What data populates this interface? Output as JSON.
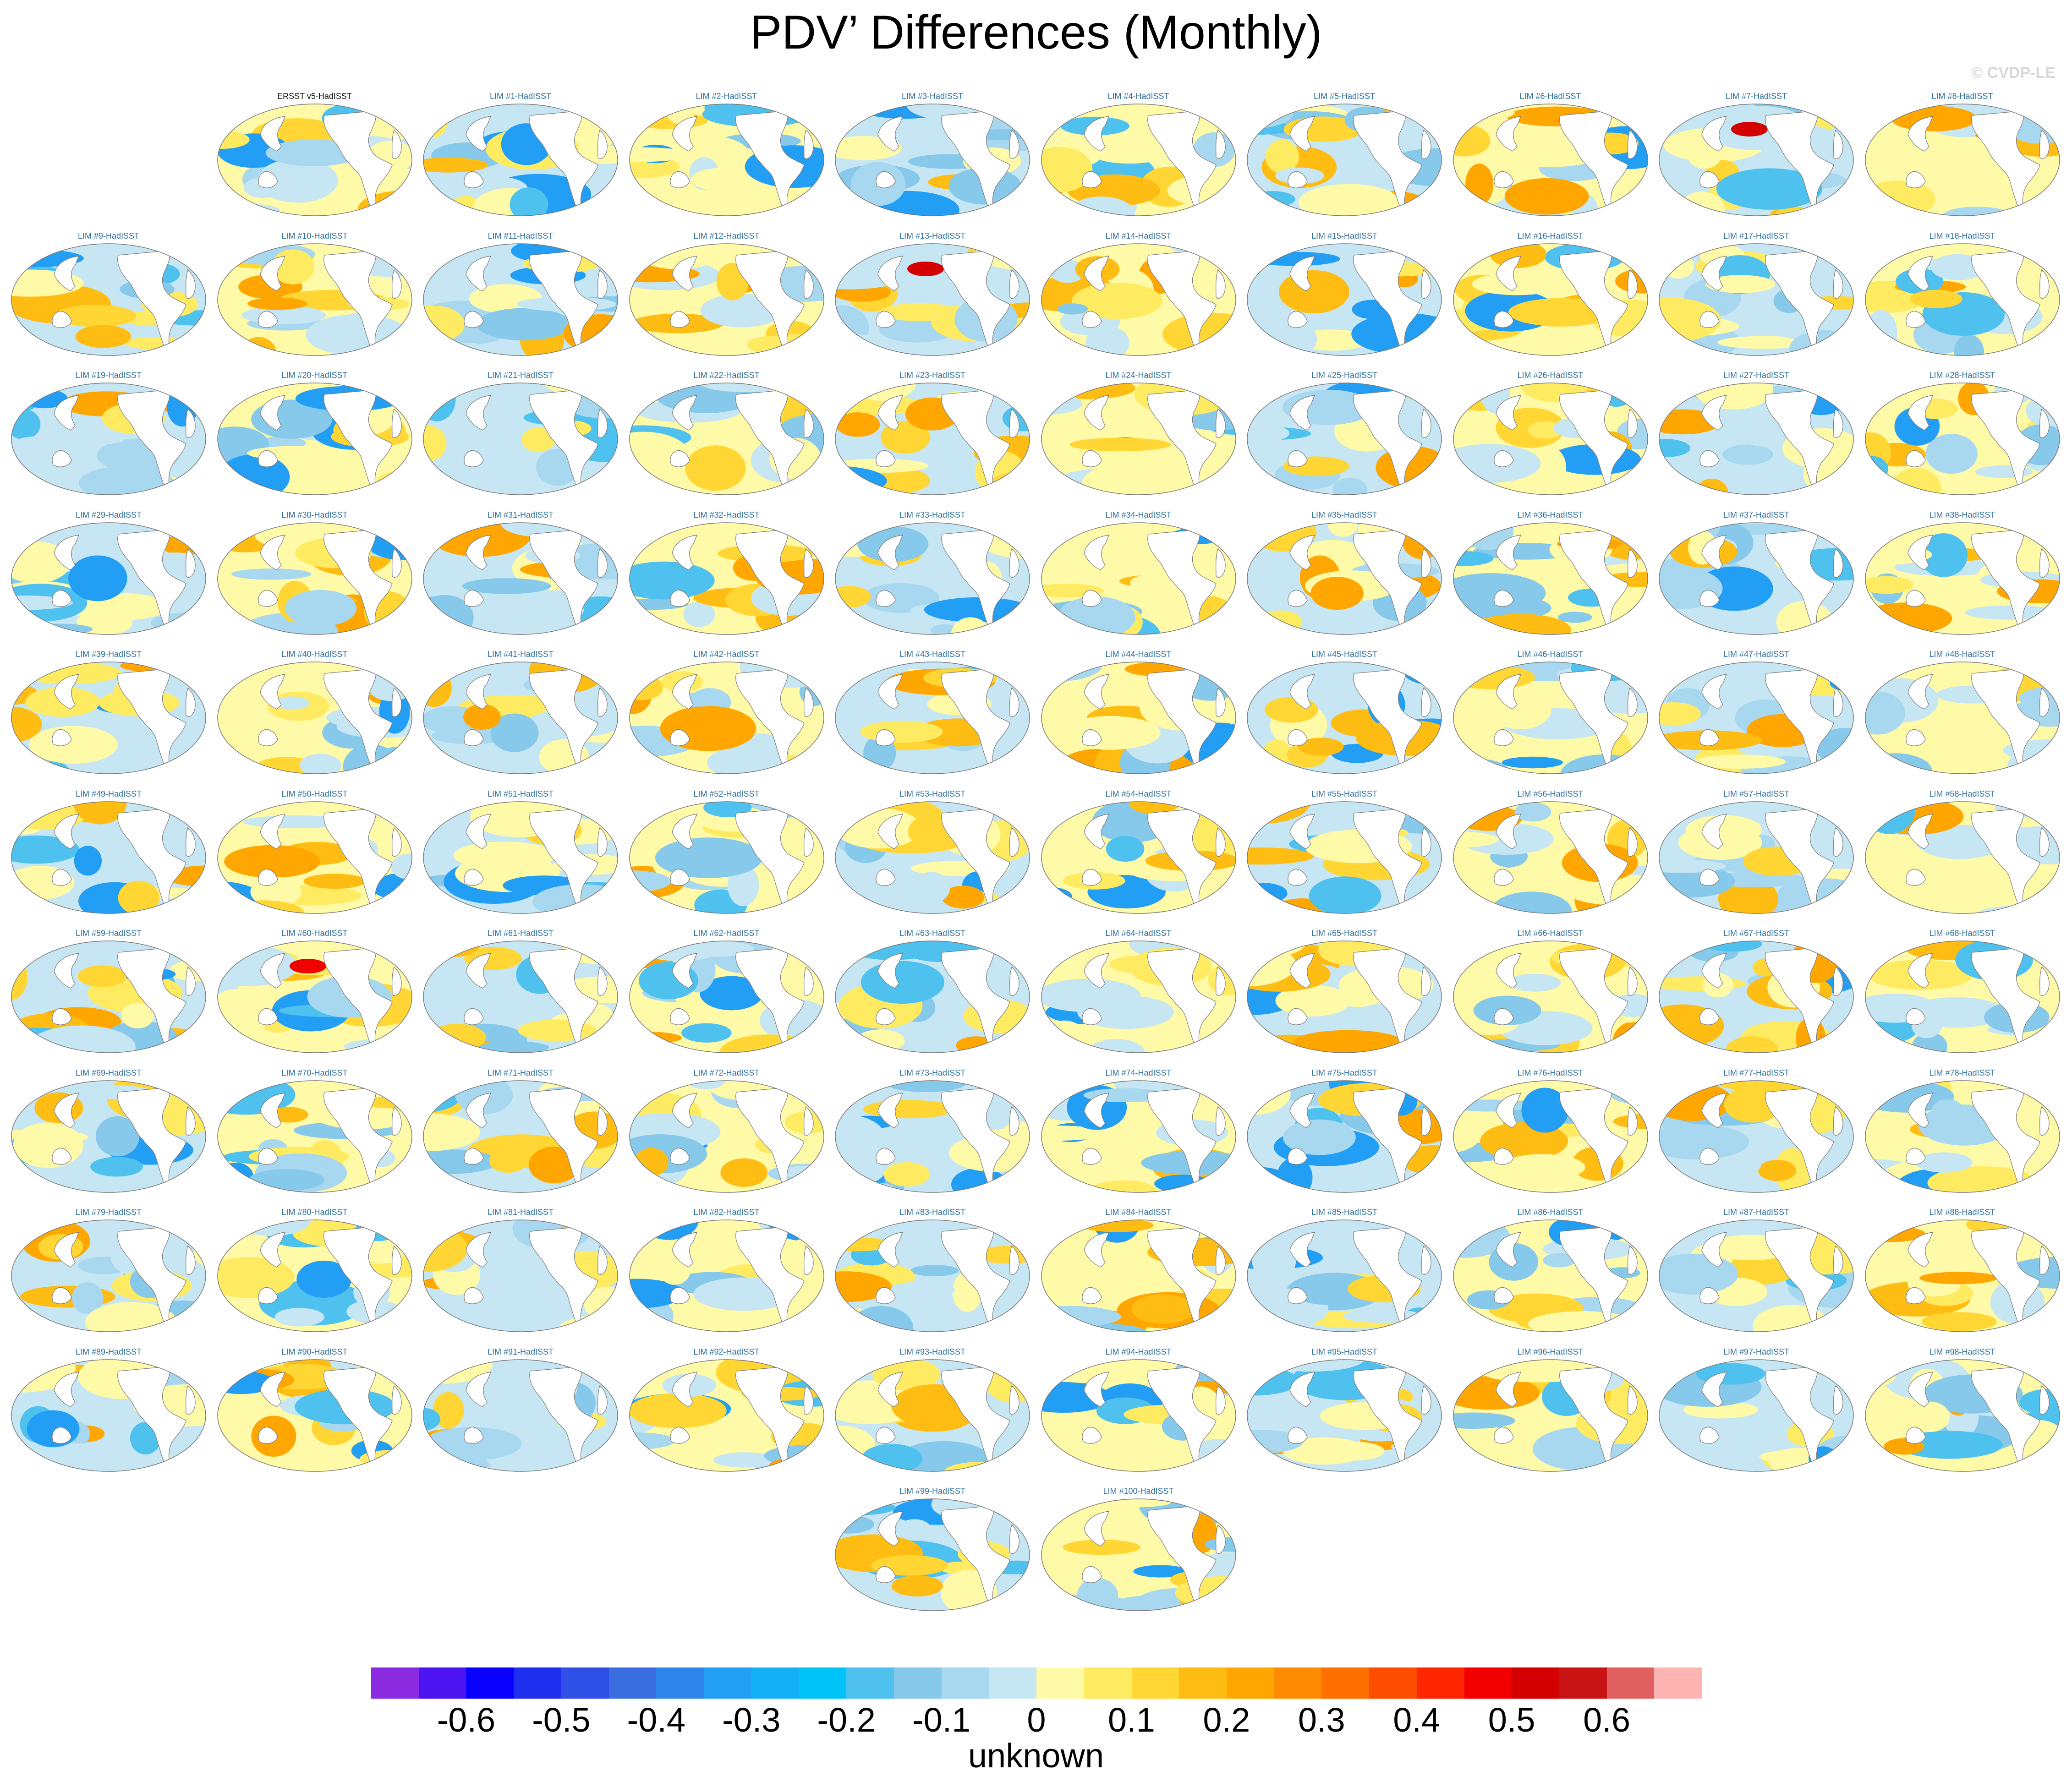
{
  "chart_data": {
    "type": "heatmap",
    "title": "PDV’ Differences (Monthly)",
    "credit": "© CVDP-LE",
    "panels": [
      "ERSST v5-HadISST",
      "LIM #1-HadISST",
      "LIM #2-HadISST",
      "LIM #3-HadISST",
      "LIM #4-HadISST",
      "LIM #5-HadISST",
      "LIM #6-HadISST",
      "LIM #7-HadISST",
      "LIM #8-HadISST",
      "LIM #9-HadISST",
      "LIM #10-HadISST",
      "LIM #11-HadISST",
      "LIM #12-HadISST",
      "LIM #13-HadISST",
      "LIM #14-HadISST",
      "LIM #15-HadISST",
      "LIM #16-HadISST",
      "LIM #17-HadISST",
      "LIM #18-HadISST",
      "LIM #19-HadISST",
      "LIM #20-HadISST",
      "LIM #21-HadISST",
      "LIM #22-HadISST",
      "LIM #23-HadISST",
      "LIM #24-HadISST",
      "LIM #25-HadISST",
      "LIM #26-HadISST",
      "LIM #27-HadISST",
      "LIM #28-HadISST",
      "LIM #29-HadISST",
      "LIM #30-HadISST",
      "LIM #31-HadISST",
      "LIM #32-HadISST",
      "LIM #33-HadISST",
      "LIM #34-HadISST",
      "LIM #35-HadISST",
      "LIM #36-HadISST",
      "LIM #37-HadISST",
      "LIM #38-HadISST",
      "LIM #39-HadISST",
      "LIM #40-HadISST",
      "LIM #41-HadISST",
      "LIM #42-HadISST",
      "LIM #43-HadISST",
      "LIM #44-HadISST",
      "LIM #45-HadISST",
      "LIM #46-HadISST",
      "LIM #47-HadISST",
      "LIM #48-HadISST",
      "LIM #49-HadISST",
      "LIM #50-HadISST",
      "LIM #51-HadISST",
      "LIM #52-HadISST",
      "LIM #53-HadISST",
      "LIM #54-HadISST",
      "LIM #55-HadISST",
      "LIM #56-HadISST",
      "LIM #57-HadISST",
      "LIM #58-HadISST",
      "LIM #59-HadISST",
      "LIM #60-HadISST",
      "LIM #61-HadISST",
      "LIM #62-HadISST",
      "LIM #63-HadISST",
      "LIM #64-HadISST",
      "LIM #65-HadISST",
      "LIM #66-HadISST",
      "LIM #67-HadISST",
      "LIM #68-HadISST",
      "LIM #69-HadISST",
      "LIM #70-HadISST",
      "LIM #71-HadISST",
      "LIM #72-HadISST",
      "LIM #73-HadISST",
      "LIM #74-HadISST",
      "LIM #75-HadISST",
      "LIM #76-HadISST",
      "LIM #77-HadISST",
      "LIM #78-HadISST",
      "LIM #79-HadISST",
      "LIM #80-HadISST",
      "LIM #81-HadISST",
      "LIM #82-HadISST",
      "LIM #83-HadISST",
      "LIM #84-HadISST",
      "LIM #85-HadISST",
      "LIM #86-HadISST",
      "LIM #87-HadISST",
      "LIM #88-HadISST",
      "LIM #89-HadISST",
      "LIM #90-HadISST",
      "LIM #91-HadISST",
      "LIM #92-HadISST",
      "LIM #93-HadISST",
      "LIM #94-HadISST",
      "LIM #95-HadISST",
      "LIM #96-HadISST",
      "LIM #97-HadISST",
      "LIM #98-HadISST",
      "LIM #99-HadISST",
      "LIM #100-HadISST"
    ],
    "colorbar": {
      "label": "unknown",
      "ticks": [
        "-0.6",
        "-0.5",
        "-0.4",
        "-0.3",
        "-0.2",
        "-0.1",
        "0",
        "0.1",
        "0.2",
        "0.3",
        "0.4",
        "0.5",
        "0.6"
      ],
      "colors": [
        "#8a2be2",
        "#4b14f0",
        "#0a00ff",
        "#1e2ff0",
        "#2f50e6",
        "#3a6ee0",
        "#2e86ea",
        "#229ef5",
        "#14b0f5",
        "#00c3f8",
        "#4fc1ef",
        "#86c9ea",
        "#a8d7f0",
        "#c6e6f3",
        "#fffaa8",
        "#ffeb61",
        "#ffd633",
        "#ffbd14",
        "#ffa600",
        "#ff8c00",
        "#ff7000",
        "#ff4d00",
        "#ff2600",
        "#f20000",
        "#d40000",
        "#c81414",
        "#e06060",
        "#ffb4b4"
      ]
    }
  }
}
